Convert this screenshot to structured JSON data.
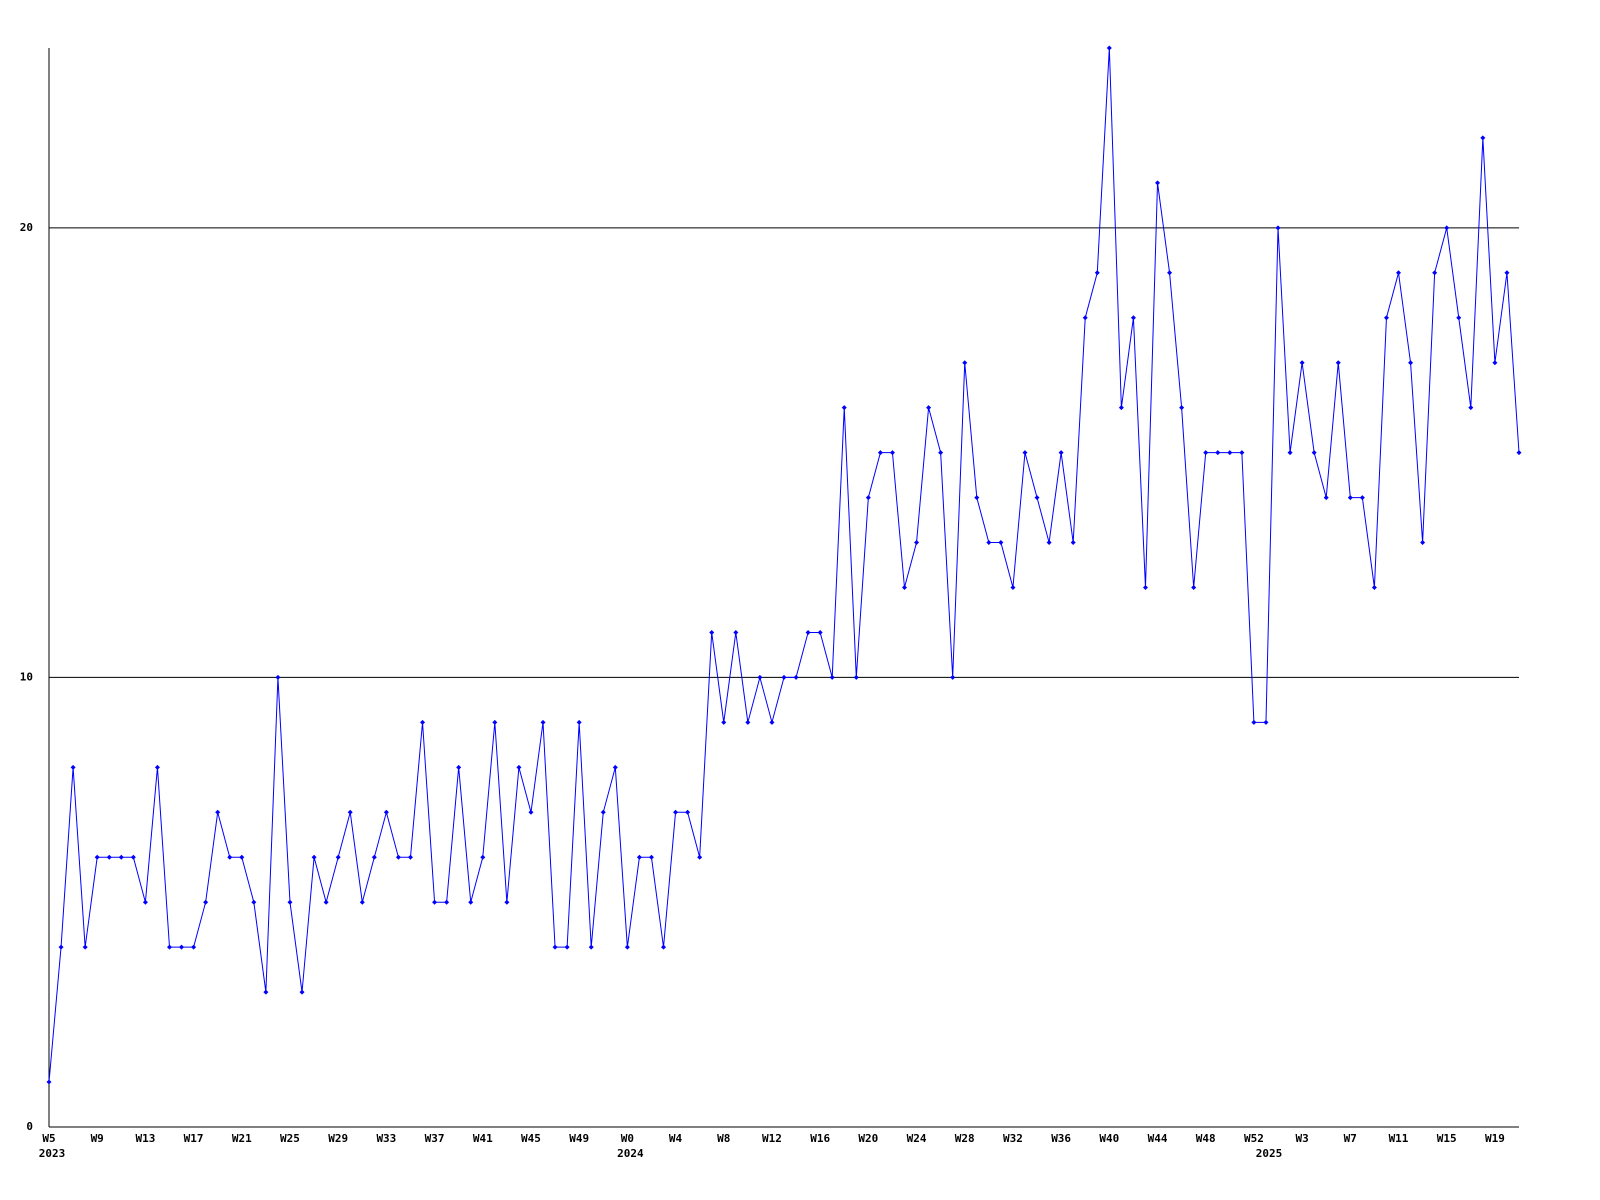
{
  "chart_data": {
    "type": "line",
    "categories": [
      "W5",
      null,
      null,
      null,
      "W9",
      null,
      null,
      null,
      "W13",
      null,
      null,
      null,
      "W17",
      null,
      null,
      null,
      "W21",
      null,
      null,
      null,
      "W25",
      null,
      null,
      null,
      "W29",
      null,
      null,
      null,
      "W33",
      null,
      null,
      null,
      "W37",
      null,
      null,
      null,
      "W41",
      null,
      null,
      null,
      "W45",
      null,
      null,
      null,
      "W49",
      null,
      null,
      null,
      "W0",
      null,
      null,
      null,
      "W4",
      null,
      null,
      null,
      "W8",
      null,
      null,
      null,
      "W12",
      null,
      null,
      null,
      "W16",
      null,
      null,
      null,
      "W20",
      null,
      null,
      null,
      "W24",
      null,
      null,
      null,
      "W28",
      null,
      null,
      null,
      "W32",
      null,
      null,
      null,
      "W36",
      null,
      null,
      null,
      "W40",
      null,
      null,
      null,
      "W44",
      null,
      null,
      null,
      "W48",
      null,
      null,
      null,
      "W52",
      null,
      null,
      null,
      "W3",
      null,
      null,
      null,
      "W7",
      null,
      null,
      null,
      "W11",
      null,
      null,
      null,
      "W15",
      null,
      null,
      null,
      "W19",
      null,
      null
    ],
    "year_labels": [
      "2023",
      null,
      null,
      null,
      null,
      null,
      null,
      null,
      null,
      null,
      null,
      null,
      null,
      null,
      null,
      null,
      null,
      null,
      null,
      null,
      null,
      null,
      null,
      null,
      null,
      null,
      null,
      null,
      null,
      null,
      null,
      null,
      null,
      null,
      null,
      null,
      null,
      null,
      null,
      null,
      null,
      null,
      null,
      null,
      null,
      null,
      null,
      null,
      "2024",
      null,
      null,
      null,
      null,
      null,
      null,
      null,
      null,
      null,
      null,
      null,
      null,
      null,
      null,
      null,
      null,
      null,
      null,
      null,
      null,
      null,
      null,
      null,
      null,
      null,
      null,
      null,
      null,
      null,
      null,
      null,
      null,
      null,
      null,
      null,
      null,
      null,
      null,
      null,
      null,
      null,
      null,
      null,
      null,
      null,
      null,
      null,
      null,
      null,
      null,
      null,
      null,
      "2025",
      null,
      null,
      null,
      null,
      null,
      null,
      null,
      null,
      null,
      null,
      null,
      null,
      null,
      null,
      null,
      null,
      null,
      null,
      null,
      null,
      null
    ],
    "series": [
      {
        "color": "#0000ff",
        "values": [
          1,
          4,
          8,
          4,
          6,
          6,
          6,
          6,
          5,
          8,
          4,
          4,
          4,
          5,
          7,
          6,
          6,
          5,
          3,
          10,
          5,
          3,
          6,
          5,
          6,
          7,
          5,
          6,
          7,
          6,
          6,
          9,
          5,
          5,
          8,
          5,
          6,
          9,
          5,
          8,
          7,
          9,
          4,
          4,
          9,
          4,
          7,
          8,
          4,
          6,
          6,
          4,
          7,
          7,
          6,
          11,
          9,
          11,
          9,
          10,
          9,
          10,
          10,
          11,
          11,
          10,
          16,
          10,
          14,
          15,
          15,
          12,
          13,
          16,
          15,
          10,
          17,
          14,
          13,
          13,
          12,
          15,
          14,
          13,
          15,
          13,
          18,
          19,
          24,
          16,
          18,
          12,
          21,
          19,
          16,
          12,
          15,
          15,
          15,
          15,
          9,
          9,
          20,
          15,
          17,
          15,
          14,
          17,
          14,
          14,
          12,
          18,
          19,
          17,
          13,
          19,
          20,
          18,
          16,
          22,
          17,
          19,
          15
        ]
      }
    ],
    "ylim": [
      0,
      24
    ],
    "yticks": [
      0,
      10,
      20
    ],
    "grid": true
  }
}
